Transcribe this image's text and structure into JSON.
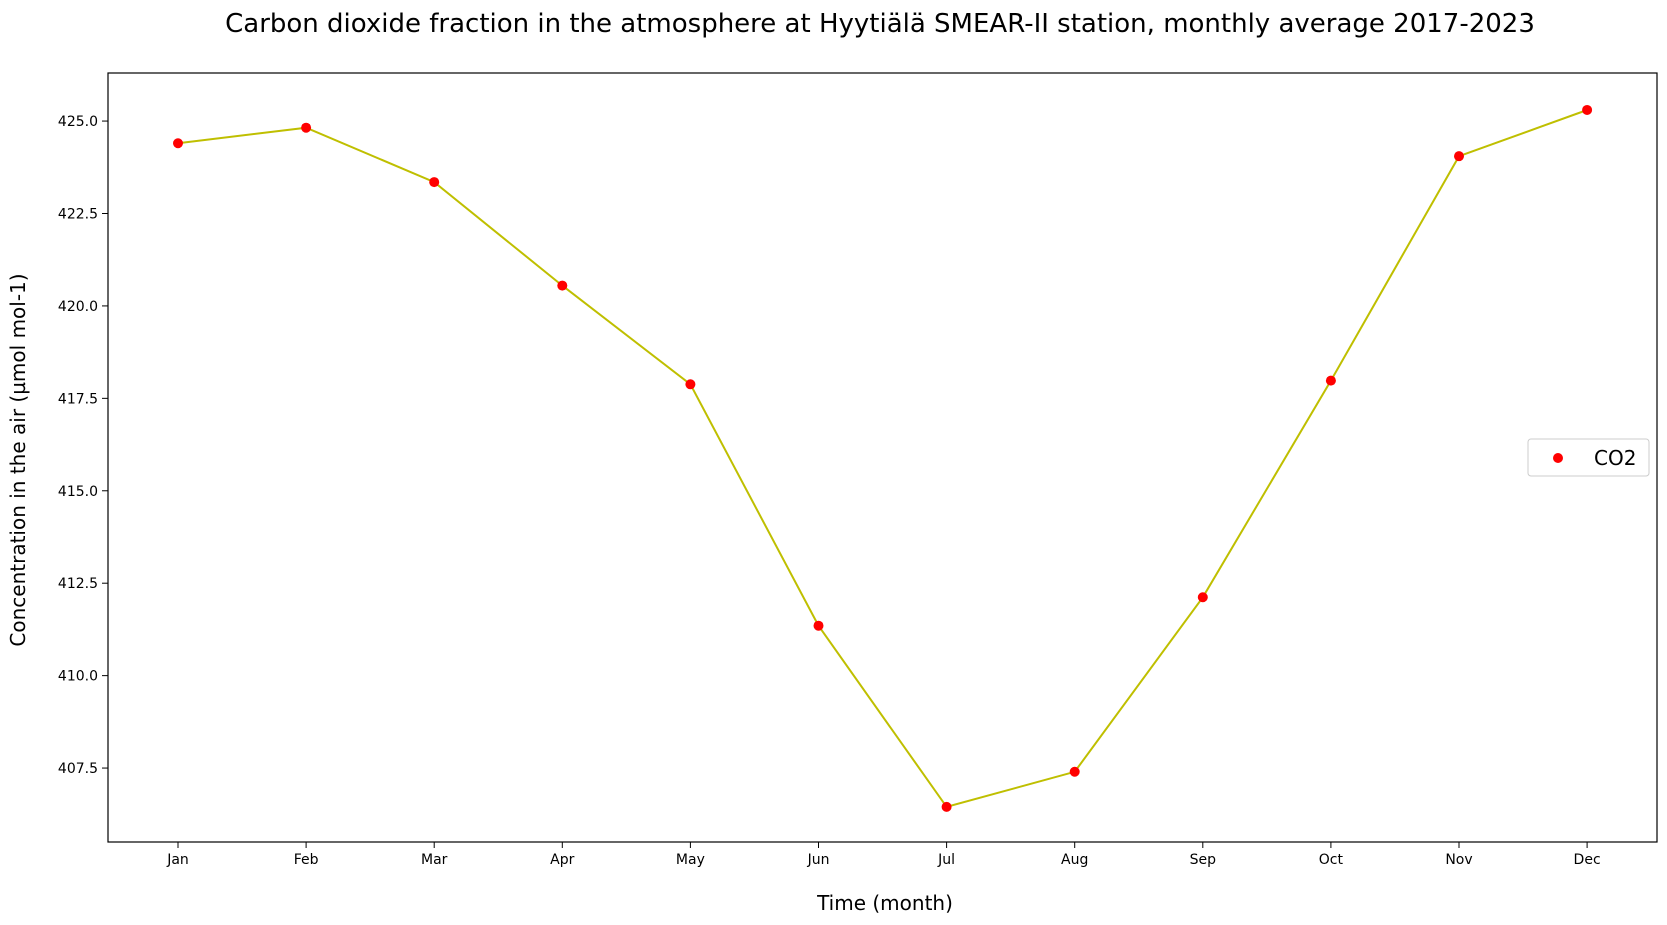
{
  "chart_data": {
    "type": "line",
    "title": "Carbon dioxide fraction in the atmosphere at Hyytiälä SMEAR-II station, monthly average 2017-2023",
    "xlabel": "Time (month)",
    "ylabel": "Concentration in the air (µmol mol-1)",
    "categories": [
      "Jan",
      "Feb",
      "Mar",
      "Apr",
      "May",
      "Jun",
      "Jul",
      "Aug",
      "Sep",
      "Oct",
      "Nov",
      "Dec"
    ],
    "series": [
      {
        "name": "CO2",
        "values": [
          424.4,
          424.82,
          423.35,
          420.55,
          417.88,
          411.35,
          406.45,
          407.4,
          412.12,
          417.98,
          424.05,
          425.3
        ],
        "line_color": "#bfbf00",
        "marker_color": "#ff0000"
      }
    ],
    "ylim": [
      405.5,
      426.3
    ],
    "yticks": [
      407.5,
      410.0,
      412.5,
      415.0,
      417.5,
      420.0,
      422.5,
      425.0
    ],
    "ytick_labels": [
      "407.5",
      "410.0",
      "412.5",
      "415.0",
      "417.5",
      "420.0",
      "422.5",
      "425.0"
    ],
    "grid": false,
    "legend_position": "center-right"
  }
}
